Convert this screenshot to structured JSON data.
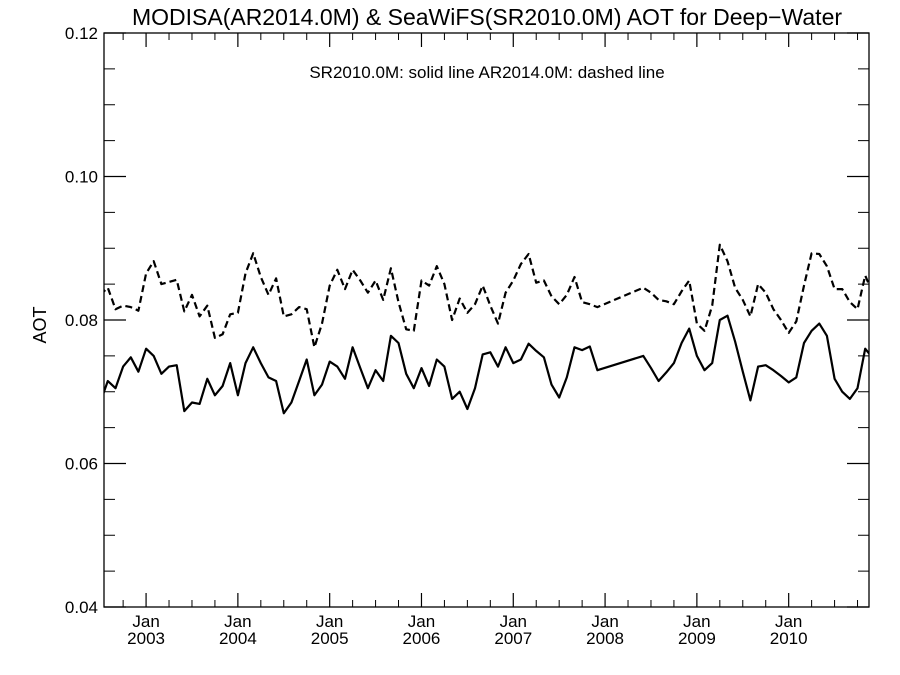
{
  "chart_data": {
    "type": "line",
    "title": "MODISA(AR2014.0M) & SeaWiFS(SR2010.0M)  AOT for Deep−Water",
    "annotation": "SR2010.0M: solid line   AR2014.0M: dashed line",
    "ylabel": "AOT",
    "xlabel": "",
    "ylim": [
      0.04,
      0.12
    ],
    "yticks": [
      "0.04",
      "0.06",
      "0.08",
      "0.10",
      "0.12"
    ],
    "xlim": [
      "2002-07",
      "2010-11"
    ],
    "xticks": [
      {
        "month": "Jan",
        "year": "2003",
        "date": "2003-01"
      },
      {
        "month": "Jan",
        "year": "2004",
        "date": "2004-01"
      },
      {
        "month": "Jan",
        "year": "2005",
        "date": "2005-01"
      },
      {
        "month": "Jan",
        "year": "2006",
        "date": "2006-01"
      },
      {
        "month": "Jan",
        "year": "2007",
        "date": "2007-01"
      },
      {
        "month": "Jan",
        "year": "2008",
        "date": "2008-01"
      },
      {
        "month": "Jan",
        "year": "2009",
        "date": "2009-01"
      },
      {
        "month": "Jan",
        "year": "2010",
        "date": "2010-01"
      }
    ],
    "grid": false,
    "series": [
      {
        "name": "SR2010.0M",
        "style": "solid",
        "color": "#000000",
        "points": [
          [
            "2002-07",
            0.0685
          ],
          [
            "2002-08",
            0.0715
          ],
          [
            "2002-09",
            0.0705
          ],
          [
            "2002-10",
            0.0735
          ],
          [
            "2002-11",
            0.0748
          ],
          [
            "2002-12",
            0.0728
          ],
          [
            "2003-01",
            0.076
          ],
          [
            "2003-02",
            0.075
          ],
          [
            "2003-03",
            0.0725
          ],
          [
            "2003-04",
            0.0735
          ],
          [
            "2003-05",
            0.0737
          ],
          [
            "2003-06",
            0.0673
          ],
          [
            "2003-07",
            0.0685
          ],
          [
            "2003-08",
            0.0683
          ],
          [
            "2003-09",
            0.0718
          ],
          [
            "2003-10",
            0.0695
          ],
          [
            "2003-11",
            0.0708
          ],
          [
            "2003-12",
            0.074
          ],
          [
            "2004-01",
            0.0695
          ],
          [
            "2004-02",
            0.074
          ],
          [
            "2004-03",
            0.0762
          ],
          [
            "2004-04",
            0.074
          ],
          [
            "2004-05",
            0.072
          ],
          [
            "2004-06",
            0.0715
          ],
          [
            "2004-07",
            0.067
          ],
          [
            "2004-08",
            0.0685
          ],
          [
            "2004-09",
            0.0715
          ],
          [
            "2004-10",
            0.0745
          ],
          [
            "2004-11",
            0.0695
          ],
          [
            "2004-12",
            0.071
          ],
          [
            "2005-01",
            0.0742
          ],
          [
            "2005-02",
            0.0735
          ],
          [
            "2005-03",
            0.0718
          ],
          [
            "2005-04",
            0.0762
          ],
          [
            "2005-05",
            0.0733
          ],
          [
            "2005-06",
            0.0705
          ],
          [
            "2005-07",
            0.073
          ],
          [
            "2005-08",
            0.0715
          ],
          [
            "2005-09",
            0.0778
          ],
          [
            "2005-10",
            0.0768
          ],
          [
            "2005-11",
            0.0725
          ],
          [
            "2005-12",
            0.0705
          ],
          [
            "2006-01",
            0.0733
          ],
          [
            "2006-02",
            0.0708
          ],
          [
            "2006-03",
            0.0745
          ],
          [
            "2006-04",
            0.0735
          ],
          [
            "2006-05",
            0.069
          ],
          [
            "2006-06",
            0.07
          ],
          [
            "2006-07",
            0.0676
          ],
          [
            "2006-08",
            0.0705
          ],
          [
            "2006-09",
            0.0752
          ],
          [
            "2006-10",
            0.0755
          ],
          [
            "2006-11",
            0.0735
          ],
          [
            "2006-12",
            0.0762
          ],
          [
            "2007-01",
            0.074
          ],
          [
            "2007-02",
            0.0745
          ],
          [
            "2007-03",
            0.0767
          ],
          [
            "2007-04",
            0.0757
          ],
          [
            "2007-05",
            0.0748
          ],
          [
            "2007-06",
            0.071
          ],
          [
            "2007-07",
            0.0692
          ],
          [
            "2007-08",
            0.072
          ],
          [
            "2007-09",
            0.0762
          ],
          [
            "2007-10",
            0.0758
          ],
          [
            "2007-11",
            0.0763
          ],
          [
            "2007-12",
            0.073
          ],
          [
            "2008-06",
            0.075
          ],
          [
            "2008-07",
            0.0733
          ],
          [
            "2008-08",
            0.0715
          ],
          [
            "2008-09",
            0.0727
          ],
          [
            "2008-10",
            0.074
          ],
          [
            "2008-11",
            0.0768
          ],
          [
            "2008-12",
            0.0788
          ],
          [
            "2009-01",
            0.075
          ],
          [
            "2009-02",
            0.073
          ],
          [
            "2009-03",
            0.074
          ],
          [
            "2009-04",
            0.08
          ],
          [
            "2009-05",
            0.0806
          ],
          [
            "2009-06",
            0.077
          ],
          [
            "2009-07",
            0.0728
          ],
          [
            "2009-08",
            0.0688
          ],
          [
            "2009-09",
            0.0735
          ],
          [
            "2009-10",
            0.0737
          ],
          [
            "2009-11",
            0.073
          ],
          [
            "2009-12",
            0.0722
          ],
          [
            "2010-01",
            0.0713
          ],
          [
            "2010-02",
            0.072
          ],
          [
            "2010-03",
            0.0768
          ],
          [
            "2010-04",
            0.0785
          ],
          [
            "2010-05",
            0.0795
          ],
          [
            "2010-06",
            0.0778
          ],
          [
            "2010-07",
            0.0718
          ],
          [
            "2010-08",
            0.07
          ],
          [
            "2010-09",
            0.069
          ],
          [
            "2010-10",
            0.0705
          ],
          [
            "2010-11",
            0.076
          ],
          [
            "2010-12",
            0.0747
          ]
        ]
      },
      {
        "name": "AR2014.0M",
        "style": "dashed",
        "color": "#000000",
        "points": [
          [
            "2002-07",
            0.0835
          ],
          [
            "2002-08",
            0.0845
          ],
          [
            "2002-09",
            0.0815
          ],
          [
            "2002-10",
            0.082
          ],
          [
            "2002-11",
            0.0818
          ],
          [
            "2002-12",
            0.0813
          ],
          [
            "2003-01",
            0.0865
          ],
          [
            "2003-02",
            0.0882
          ],
          [
            "2003-03",
            0.085
          ],
          [
            "2003-04",
            0.0853
          ],
          [
            "2003-05",
            0.0856
          ],
          [
            "2003-06",
            0.0812
          ],
          [
            "2003-07",
            0.0835
          ],
          [
            "2003-08",
            0.0805
          ],
          [
            "2003-09",
            0.082
          ],
          [
            "2003-10",
            0.0775
          ],
          [
            "2003-11",
            0.078
          ],
          [
            "2003-12",
            0.0808
          ],
          [
            "2004-01",
            0.081
          ],
          [
            "2004-02",
            0.0865
          ],
          [
            "2004-03",
            0.0893
          ],
          [
            "2004-04",
            0.086
          ],
          [
            "2004-05",
            0.0835
          ],
          [
            "2004-06",
            0.0858
          ],
          [
            "2004-07",
            0.0805
          ],
          [
            "2004-08",
            0.0808
          ],
          [
            "2004-09",
            0.0818
          ],
          [
            "2004-10",
            0.0815
          ],
          [
            "2004-11",
            0.0762
          ],
          [
            "2004-12",
            0.0795
          ],
          [
            "2005-01",
            0.0848
          ],
          [
            "2005-02",
            0.087
          ],
          [
            "2005-03",
            0.0843
          ],
          [
            "2005-04",
            0.087
          ],
          [
            "2005-05",
            0.0855
          ],
          [
            "2005-06",
            0.0838
          ],
          [
            "2005-07",
            0.0855
          ],
          [
            "2005-08",
            0.0828
          ],
          [
            "2005-09",
            0.0872
          ],
          [
            "2005-10",
            0.0825
          ],
          [
            "2005-11",
            0.0787
          ],
          [
            "2005-12",
            0.0785
          ],
          [
            "2006-01",
            0.0855
          ],
          [
            "2006-02",
            0.0848
          ],
          [
            "2006-03",
            0.0875
          ],
          [
            "2006-04",
            0.085
          ],
          [
            "2006-05",
            0.08
          ],
          [
            "2006-06",
            0.083
          ],
          [
            "2006-07",
            0.081
          ],
          [
            "2006-08",
            0.0822
          ],
          [
            "2006-09",
            0.0848
          ],
          [
            "2006-10",
            0.082
          ],
          [
            "2006-11",
            0.0795
          ],
          [
            "2006-12",
            0.0838
          ],
          [
            "2007-01",
            0.0855
          ],
          [
            "2007-02",
            0.0878
          ],
          [
            "2007-03",
            0.0892
          ],
          [
            "2007-04",
            0.0852
          ],
          [
            "2007-05",
            0.0855
          ],
          [
            "2007-06",
            0.0833
          ],
          [
            "2007-07",
            0.0822
          ],
          [
            "2007-08",
            0.0835
          ],
          [
            "2007-09",
            0.086
          ],
          [
            "2007-10",
            0.0825
          ],
          [
            "2007-11",
            0.0822
          ],
          [
            "2007-12",
            0.0818
          ],
          [
            "2008-06",
            0.0845
          ],
          [
            "2008-07",
            0.0838
          ],
          [
            "2008-08",
            0.0828
          ],
          [
            "2008-09",
            0.0826
          ],
          [
            "2008-10",
            0.0822
          ],
          [
            "2008-11",
            0.084
          ],
          [
            "2008-12",
            0.0855
          ],
          [
            "2009-01",
            0.0795
          ],
          [
            "2009-02",
            0.0785
          ],
          [
            "2009-03",
            0.082
          ],
          [
            "2009-04",
            0.0905
          ],
          [
            "2009-05",
            0.0882
          ],
          [
            "2009-06",
            0.0845
          ],
          [
            "2009-07",
            0.0828
          ],
          [
            "2009-08",
            0.0805
          ],
          [
            "2009-09",
            0.085
          ],
          [
            "2009-10",
            0.0838
          ],
          [
            "2009-11",
            0.0815
          ],
          [
            "2009-12",
            0.08
          ],
          [
            "2010-01",
            0.0782
          ],
          [
            "2010-02",
            0.0798
          ],
          [
            "2010-03",
            0.0848
          ],
          [
            "2010-04",
            0.0893
          ],
          [
            "2010-05",
            0.0892
          ],
          [
            "2010-06",
            0.0875
          ],
          [
            "2010-07",
            0.0843
          ],
          [
            "2010-08",
            0.0843
          ],
          [
            "2010-09",
            0.0825
          ],
          [
            "2010-10",
            0.0815
          ],
          [
            "2010-11",
            0.0862
          ],
          [
            "2010-12",
            0.0837
          ]
        ]
      }
    ]
  }
}
